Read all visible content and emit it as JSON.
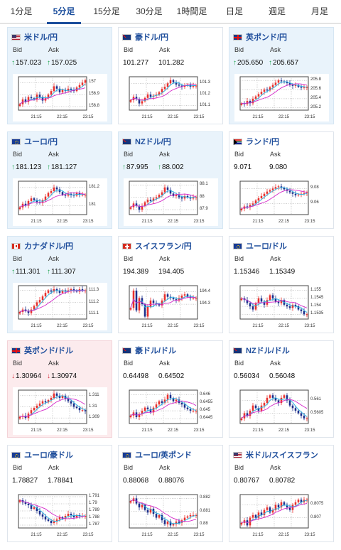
{
  "tabs": [
    {
      "label": "1分足",
      "active": false
    },
    {
      "label": "5分足",
      "active": true
    },
    {
      "label": "15分足",
      "active": false
    },
    {
      "label": "30分足",
      "active": false
    },
    {
      "label": "1時間足",
      "active": false
    },
    {
      "label": "日足",
      "active": false
    },
    {
      "label": "週足",
      "active": false
    },
    {
      "label": "月足",
      "active": false
    }
  ],
  "labels": {
    "bid": "Bid",
    "ask": "Ask"
  },
  "colors": {
    "up_candle": "#e8312e",
    "down_candle": "#1c2f8c",
    "ma_short": "#25b3e3",
    "ma_long": "#d428c9",
    "title": "#1f4e9c",
    "tab_active": "#1a4d9c",
    "arrow_up": "#1ba34a",
    "arrow_down": "#d62d3a"
  },
  "cards": [
    {
      "pair": "米ドル/円",
      "flag": "us",
      "state": "up",
      "bid_arrow": "↑",
      "bid": "157.023",
      "ask_arrow": "↑",
      "ask": "157.025",
      "chart_data": {
        "type": "candlestick",
        "x_ticks": [
          "21:15",
          "22:15",
          "23:15"
        ],
        "y_ticks": [
          "157",
          "156.9",
          "156.8"
        ],
        "ylim": [
          156.77,
          157.05
        ],
        "close_path": [
          156.82,
          156.86,
          156.84,
          156.88,
          156.87,
          156.86,
          156.9,
          156.88,
          156.85,
          156.87,
          156.9,
          156.93,
          156.97,
          156.95,
          156.92,
          156.94,
          156.93,
          156.95,
          156.94,
          156.93,
          156.96,
          156.98,
          157.0,
          157.02
        ]
      }
    },
    {
      "pair": "豪ドル/円",
      "flag": "au",
      "state": "none",
      "bid_arrow": "",
      "bid": "101.277",
      "ask_arrow": "",
      "ask": "101.282",
      "chart_data": {
        "type": "candlestick",
        "x_ticks": [
          "21:15",
          "22:15",
          "23:15"
        ],
        "y_ticks": [
          "101.3",
          "101.2",
          "101.1"
        ],
        "ylim": [
          101.06,
          101.36
        ],
        "close_path": [
          101.15,
          101.18,
          101.16,
          101.12,
          101.14,
          101.17,
          101.2,
          101.18,
          101.19,
          101.2,
          101.22,
          101.25,
          101.27,
          101.3,
          101.33,
          101.31,
          101.29,
          101.28,
          101.27,
          101.28,
          101.29,
          101.27,
          101.28,
          101.28
        ]
      }
    },
    {
      "pair": "英ポンド/円",
      "flag": "gb",
      "state": "up",
      "bid_arrow": "↑",
      "bid": "205.650",
      "ask_arrow": "↑",
      "ask": "205.657",
      "chart_data": {
        "type": "candlestick",
        "x_ticks": [
          "21:15",
          "22:15",
          "23:15"
        ],
        "y_ticks": [
          "205.8",
          "205.6",
          "205.4",
          "205.2"
        ],
        "ylim": [
          205.15,
          205.88
        ],
        "close_path": [
          205.3,
          205.28,
          205.35,
          205.3,
          205.4,
          205.45,
          205.5,
          205.55,
          205.6,
          205.58,
          205.65,
          205.7,
          205.75,
          205.8,
          205.78,
          205.76,
          205.74,
          205.7,
          205.68,
          205.7,
          205.66,
          205.64,
          205.65,
          205.65
        ]
      }
    },
    {
      "pair": "ユーロ/円",
      "flag": "eu",
      "state": "up",
      "bid_arrow": "↑",
      "bid": "181.123",
      "ask_arrow": "↑",
      "ask": "181.127",
      "chart_data": {
        "type": "candlestick",
        "x_ticks": [
          "21:15",
          "22:15",
          "23:15"
        ],
        "y_ticks": [
          "181.2",
          "181"
        ],
        "ylim": [
          180.9,
          181.27
        ],
        "close_path": [
          180.98,
          181.02,
          181.0,
          181.05,
          181.08,
          181.06,
          181.04,
          181.03,
          181.06,
          181.1,
          181.14,
          181.16,
          181.2,
          181.18,
          181.15,
          181.12,
          181.11,
          181.13,
          181.12,
          181.11,
          181.14,
          181.12,
          181.12,
          181.12
        ]
      }
    },
    {
      "pair": "NZドル/円",
      "flag": "nz",
      "state": "up",
      "bid_arrow": "↑",
      "bid": "87.995",
      "ask_arrow": "↑",
      "ask": "88.002",
      "chart_data": {
        "type": "candlestick",
        "x_ticks": [
          "21:15",
          "22:15",
          "23:15"
        ],
        "y_ticks": [
          "88.1",
          "88",
          "87.9"
        ],
        "ylim": [
          87.86,
          88.13
        ],
        "close_path": [
          87.92,
          87.95,
          87.93,
          87.9,
          87.93,
          87.96,
          87.98,
          87.97,
          87.99,
          88.0,
          88.02,
          88.04,
          88.08,
          88.06,
          88.03,
          88.01,
          88.02,
          88.0,
          87.99,
          88.01,
          88.0,
          87.99,
          88.0,
          88.0
        ]
      }
    },
    {
      "pair": "ランド/円",
      "flag": "za",
      "state": "none",
      "bid_arrow": "",
      "bid": "9.071",
      "ask_arrow": "",
      "ask": "9.080",
      "chart_data": {
        "type": "candlestick",
        "x_ticks": [
          "21:15",
          "22:15",
          "23:15"
        ],
        "y_ticks": [
          "9.08",
          "9.06"
        ],
        "ylim": [
          9.045,
          9.09
        ],
        "close_path": [
          9.053,
          9.056,
          9.055,
          9.058,
          9.06,
          9.064,
          9.067,
          9.07,
          9.073,
          9.076,
          9.078,
          9.08,
          9.082,
          9.083,
          9.081,
          9.079,
          9.077,
          9.075,
          9.073,
          9.071,
          9.072,
          9.073,
          9.074,
          9.075
        ]
      }
    },
    {
      "pair": "カナダドル/円",
      "flag": "ca",
      "state": "up",
      "bid_arrow": "↑",
      "bid": "111.301",
      "ask_arrow": "↑",
      "ask": "111.307",
      "chart_data": {
        "type": "candlestick",
        "x_ticks": [
          "21:15",
          "22:15",
          "23:15"
        ],
        "y_ticks": [
          "111.3",
          "111.2",
          "111.1"
        ],
        "ylim": [
          111.06,
          111.34
        ],
        "close_path": [
          111.12,
          111.14,
          111.13,
          111.11,
          111.14,
          111.17,
          111.2,
          111.22,
          111.25,
          111.28,
          111.3,
          111.29,
          111.31,
          111.3,
          111.28,
          111.3,
          111.29,
          111.3,
          111.31,
          111.3,
          111.29,
          111.31,
          111.3,
          111.3
        ]
      }
    },
    {
      "pair": "スイスフラン/円",
      "flag": "ch",
      "state": "none",
      "bid_arrow": "",
      "bid": "194.389",
      "ask_arrow": "",
      "ask": "194.405",
      "chart_data": {
        "type": "candlestick",
        "x_ticks": [
          "21:15",
          "22:15",
          "23:15"
        ],
        "y_ticks": [
          "194.4",
          "194.3"
        ],
        "ylim": [
          194.18,
          194.45
        ],
        "close_path": [
          194.27,
          194.41,
          194.25,
          194.35,
          194.3,
          194.2,
          194.28,
          194.33,
          194.31,
          194.3,
          194.29,
          194.33,
          194.38,
          194.36,
          194.35,
          194.34,
          194.33,
          194.35,
          194.37,
          194.38,
          194.36,
          194.35,
          194.35,
          194.35
        ]
      }
    },
    {
      "pair": "ユーロ/ドル",
      "flag": "eu",
      "state": "none",
      "bid_arrow": "",
      "bid": "1.15346",
      "ask_arrow": "",
      "ask": "1.15349",
      "chart_data": {
        "type": "candlestick",
        "x_ticks": [
          "21:15",
          "22:15",
          "23:15"
        ],
        "y_ticks": [
          "1.155",
          "1.1545",
          "1.154",
          "1.1535"
        ],
        "ylim": [
          1.1532,
          1.1553
        ],
        "close_path": [
          1.1545,
          1.1544,
          1.1542,
          1.154,
          1.1538,
          1.1542,
          1.1545,
          1.1543,
          1.1541,
          1.1544,
          1.1547,
          1.1545,
          1.1543,
          1.1542,
          1.1544,
          1.1541,
          1.154,
          1.1539,
          1.1541,
          1.154,
          1.1538,
          1.1537,
          1.1535,
          1.1535
        ]
      }
    },
    {
      "pair": "英ポンド/ドル",
      "flag": "gb",
      "state": "down",
      "bid_arrow": "↓",
      "bid": "1.30964",
      "ask_arrow": "↓",
      "ask": "1.30974",
      "chart_data": {
        "type": "candlestick",
        "x_ticks": [
          "21:15",
          "22:15",
          "23:15"
        ],
        "y_ticks": [
          "1.311",
          "1.31",
          "1.309"
        ],
        "ylim": [
          1.3085,
          1.3115
        ],
        "close_path": [
          1.3091,
          1.3092,
          1.309,
          1.3094,
          1.3097,
          1.3099,
          1.3101,
          1.3103,
          1.3105,
          1.3104,
          1.3106,
          1.3108,
          1.3112,
          1.311,
          1.3108,
          1.311,
          1.3107,
          1.3105,
          1.3103,
          1.31,
          1.3099,
          1.3097,
          1.3097,
          1.3096
        ]
      }
    },
    {
      "pair": "豪ドル/ドル",
      "flag": "au",
      "state": "none",
      "bid_arrow": "",
      "bid": "0.64498",
      "ask_arrow": "",
      "ask": "0.64502",
      "chart_data": {
        "type": "candlestick",
        "x_ticks": [
          "21:15",
          "22:15",
          "23:15"
        ],
        "y_ticks": [
          "0.646",
          "0.6455",
          "0.645",
          "0.6445"
        ],
        "ylim": [
          0.6442,
          0.6463
        ],
        "close_path": [
          0.6447,
          0.6449,
          0.6446,
          0.6448,
          0.645,
          0.6452,
          0.6451,
          0.6449,
          0.6452,
          0.6454,
          0.6456,
          0.6455,
          0.6457,
          0.646,
          0.6458,
          0.6456,
          0.6457,
          0.6455,
          0.6454,
          0.6452,
          0.6451,
          0.645,
          0.645,
          0.645
        ]
      }
    },
    {
      "pair": "NZドル/ドル",
      "flag": "nz",
      "state": "none",
      "bid_arrow": "",
      "bid": "0.56034",
      "ask_arrow": "",
      "ask": "0.56048",
      "chart_data": {
        "type": "candlestick",
        "x_ticks": [
          "21:15",
          "22:15",
          "23:15"
        ],
        "y_ticks": [
          "0.561",
          "0.5605"
        ],
        "ylim": [
          0.5601,
          0.5614
        ],
        "close_path": [
          0.5603,
          0.5605,
          0.5604,
          0.5606,
          0.5608,
          0.5607,
          0.5606,
          0.5608,
          0.5609,
          0.5611,
          0.5612,
          0.5611,
          0.561,
          0.5609,
          0.5611,
          0.5612,
          0.561,
          0.5608,
          0.5607,
          0.5606,
          0.5605,
          0.5604,
          0.5603,
          0.5603
        ]
      }
    },
    {
      "pair": "ユーロ/豪ドル",
      "flag": "eu",
      "state": "none",
      "bid_arrow": "",
      "bid": "1.78827",
      "ask_arrow": "",
      "ask": "1.78841",
      "chart_data": {
        "type": "candlestick",
        "x_ticks": [
          "21:15",
          "22:15",
          "23:15"
        ],
        "y_ticks": [
          "1.791",
          "1.79",
          "1.789",
          "1.788",
          "1.787"
        ],
        "ylim": [
          1.7866,
          1.7913
        ],
        "close_path": [
          1.7905,
          1.7902,
          1.79,
          1.7898,
          1.7893,
          1.7895,
          1.789,
          1.7885,
          1.7882,
          1.7878,
          1.7876,
          1.7873,
          1.7875,
          1.7878,
          1.7881,
          1.7879,
          1.7883,
          1.7886,
          1.7884,
          1.7881,
          1.7884,
          1.7883,
          1.7883,
          1.7883
        ]
      }
    },
    {
      "pair": "ユーロ/英ポンド",
      "flag": "eu",
      "state": "none",
      "bid_arrow": "",
      "bid": "0.88068",
      "ask_arrow": "",
      "ask": "0.88076",
      "chart_data": {
        "type": "candlestick",
        "x_ticks": [
          "21:15",
          "22:15",
          "23:15"
        ],
        "y_ticks": [
          "0.882",
          "0.881",
          "0.88"
        ],
        "ylim": [
          0.8797,
          0.8823
        ],
        "close_path": [
          0.8818,
          0.882,
          0.8816,
          0.8813,
          0.8815,
          0.8811,
          0.8809,
          0.8812,
          0.8808,
          0.8805,
          0.8807,
          0.8803,
          0.88,
          0.8802,
          0.8799,
          0.88,
          0.8802,
          0.8801,
          0.8803,
          0.8805,
          0.8806,
          0.8807,
          0.8807,
          0.8807
        ]
      }
    },
    {
      "pair": "米ドル/スイスフラン",
      "flag": "us",
      "state": "none",
      "bid_arrow": "",
      "bid": "0.80767",
      "ask_arrow": "",
      "ask": "0.80782",
      "chart_data": {
        "type": "candlestick",
        "x_ticks": [
          "21:15",
          "22:15",
          "23:15"
        ],
        "y_ticks": [
          "0.8075",
          "0.807"
        ],
        "ylim": [
          0.8066,
          0.8079
        ],
        "close_path": [
          0.8068,
          0.8069,
          0.8067,
          0.807,
          0.8071,
          0.807,
          0.8072,
          0.8071,
          0.8073,
          0.8074,
          0.8072,
          0.8073,
          0.8075,
          0.8074,
          0.8076,
          0.8075,
          0.8074,
          0.8073,
          0.8075,
          0.8076,
          0.8077,
          0.8076,
          0.8077,
          0.8077
        ]
      }
    }
  ]
}
